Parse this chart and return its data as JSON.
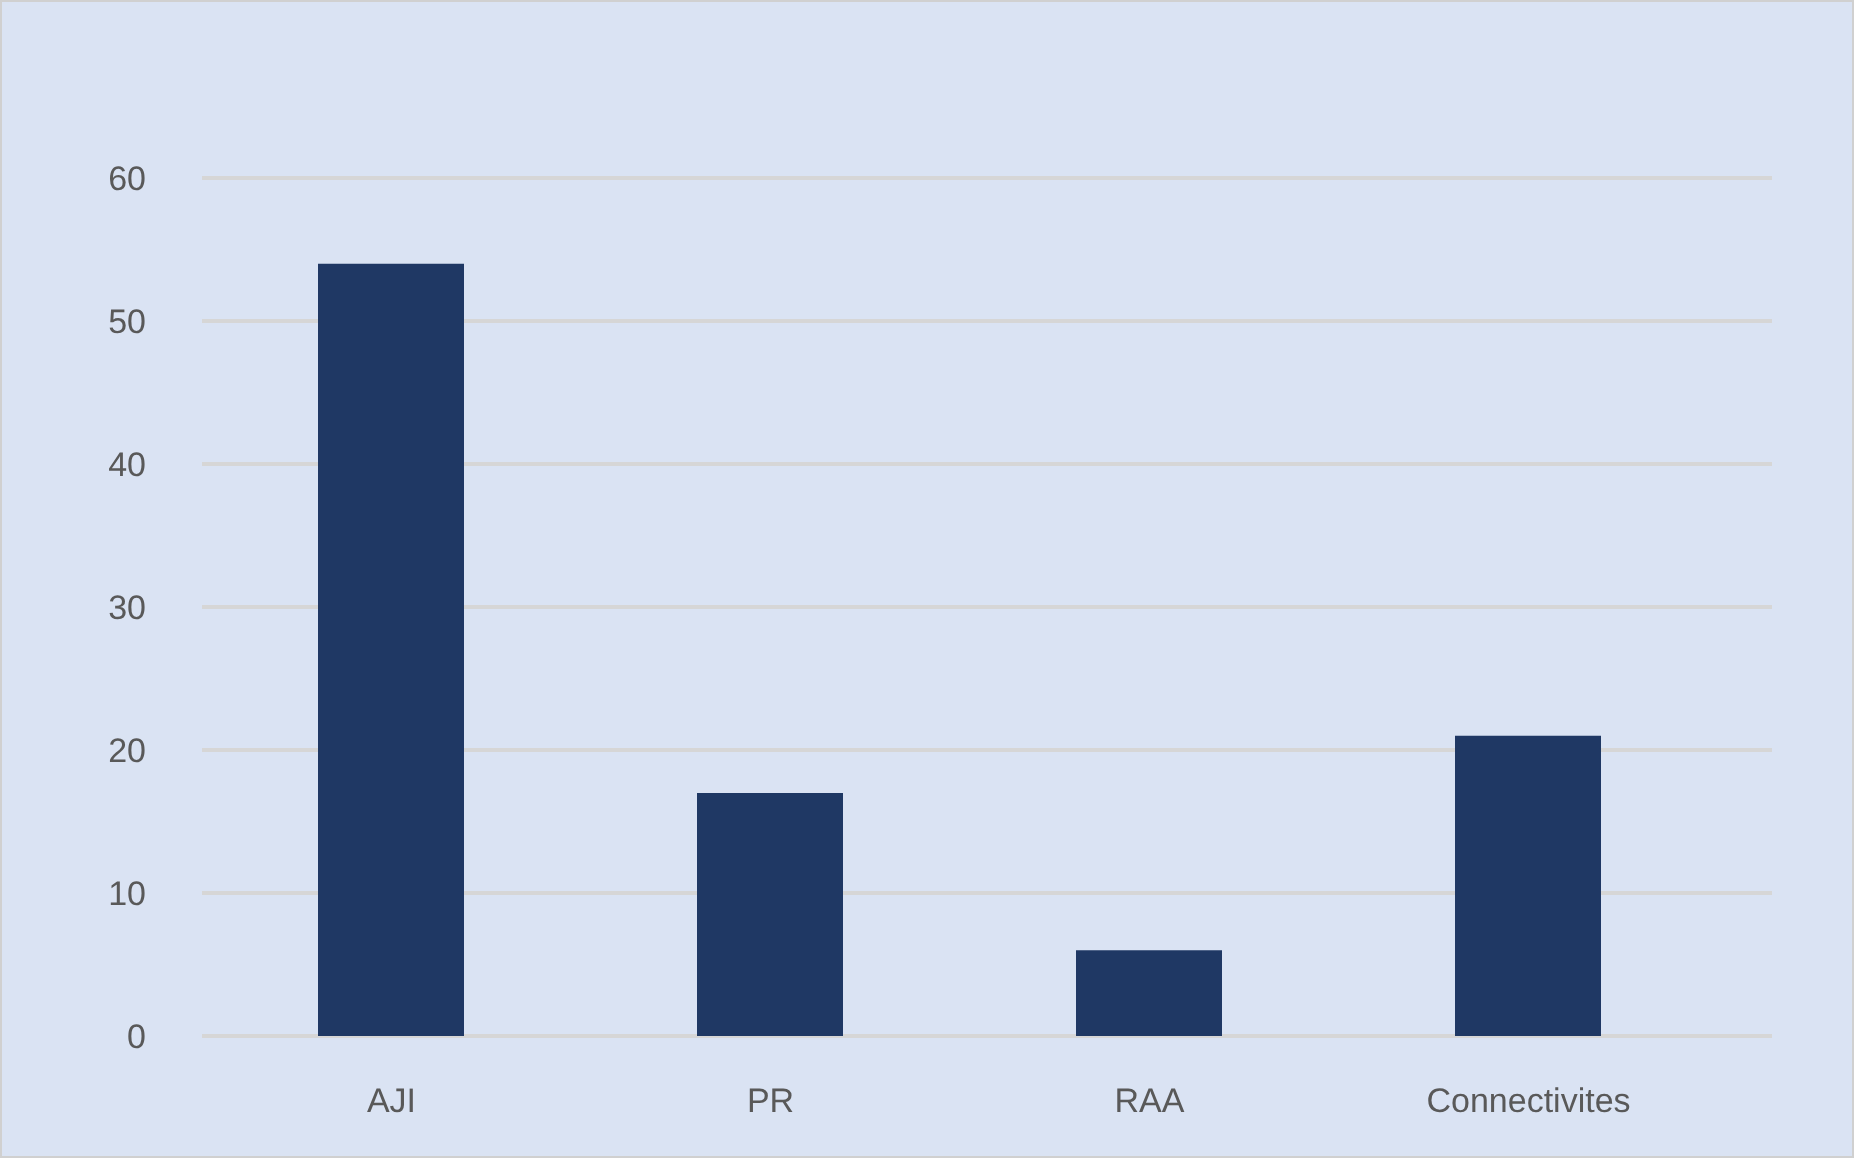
{
  "chart_data": {
    "type": "bar",
    "categories": [
      "AJI",
      "PR",
      "RAA",
      "Connectivites"
    ],
    "values": [
      54,
      17,
      6,
      21
    ],
    "color": "#1f3864",
    "ylim": [
      0,
      60
    ],
    "yticks": [
      0,
      10,
      20,
      30,
      40,
      50,
      60
    ],
    "grid": "y"
  }
}
